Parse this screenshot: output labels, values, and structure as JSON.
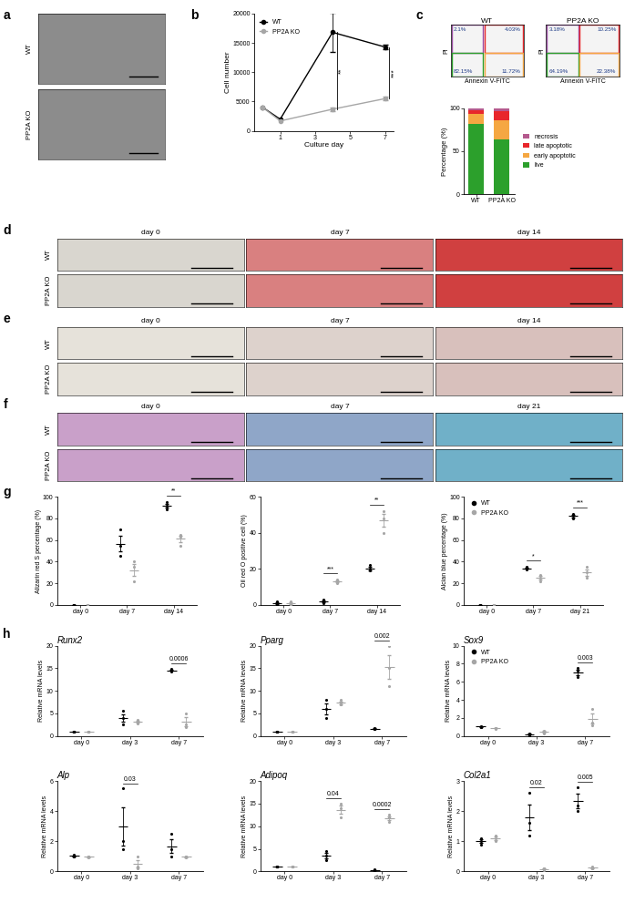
{
  "images": [
    {
      "panel": "a",
      "rows": [
        "WT",
        "PP2A KO"
      ]
    },
    {
      "panel": "d",
      "rows": [
        "WT",
        "PP2A KO"
      ],
      "columns": [
        "day 0",
        "day 7",
        "day 14"
      ]
    },
    {
      "panel": "e",
      "rows": [
        "WT",
        "PP2A KO"
      ],
      "columns": [
        "day 0",
        "day 7",
        "day 14"
      ]
    },
    {
      "panel": "f",
      "rows": [
        "WT",
        "PP2A KO"
      ],
      "columns": [
        "day 0",
        "day 7",
        "day 21"
      ]
    }
  ],
  "chart_data": [
    {
      "panel": "b",
      "type": "line",
      "x_label": "Culture day",
      "y_label": "Cell number",
      "x": [
        0,
        1,
        4,
        7
      ],
      "xlim": [
        -0.5,
        7.5
      ],
      "xticks": [
        1,
        3,
        5,
        7
      ],
      "ylim": [
        0,
        20000
      ],
      "yticks": [
        0,
        5000,
        10000,
        15000,
        20000
      ],
      "legend": "upper left",
      "series": [
        {
          "name": "WT",
          "color": "#000000",
          "marker": "o",
          "values": [
            4000,
            2000,
            16800,
            14300
          ],
          "errors": [
            null,
            null,
            3300,
            400
          ]
        },
        {
          "name": "PP2A KO",
          "color": "#a6a6a6",
          "marker": "o",
          "values": [
            4000,
            1700,
            3700,
            5500
          ],
          "errors": [
            null,
            null,
            300,
            300
          ]
        }
      ],
      "annotations": [
        {
          "x": 4,
          "text": "**"
        },
        {
          "x": 7,
          "text": "***"
        }
      ]
    },
    {
      "panel": "c",
      "type": "quadrant",
      "title": "WT",
      "x_label": "Annexin V-FITC",
      "y_label": "PI",
      "tick_labels": false,
      "values": [
        2.1,
        4.03,
        82.15,
        11.72
      ],
      "value_labels": [
        "2.1%",
        "4.03%",
        "82.15%",
        "11.72%"
      ],
      "colors": [
        "#9b4fa5",
        "#e8262b",
        "#2ca02c",
        "#f5a742"
      ],
      "data_labels": true
    },
    {
      "panel": "c",
      "type": "quadrant",
      "title": "PP2A KO",
      "x_label": "Annexin V-FITC",
      "y_label": "PI",
      "tick_labels": false,
      "values": [
        3.18,
        10.25,
        64.19,
        22.38
      ],
      "value_labels": [
        "3.18%",
        "10.25%",
        "64.19%",
        "22.38%"
      ],
      "colors": [
        "#9b4fa5",
        "#e8262b",
        "#2ca02c",
        "#f5a742"
      ],
      "data_labels": true
    },
    {
      "panel": "c",
      "type": "bar",
      "stacked": true,
      "y_label": "Percentage (%)",
      "categories": [
        "WT",
        "PP2A KO"
      ],
      "ylim": [
        0,
        100
      ],
      "yticks": [
        0,
        50,
        100
      ],
      "legend": "center left",
      "series": [
        {
          "name": "live",
          "color": "#2ca02c",
          "values": [
            82.15,
            64.19
          ]
        },
        {
          "name": "early apoptotic",
          "color": "#f5a742",
          "values": [
            11.72,
            22.38
          ]
        },
        {
          "name": "late apoptotic",
          "color": "#e8262b",
          "values": [
            4.03,
            10.25
          ]
        },
        {
          "name": "necrosis",
          "color": "#b55a8e",
          "values": [
            2.1,
            3.18
          ]
        }
      ]
    },
    {
      "panel": "g",
      "type": "dot",
      "y_label": "Alizarin red S percentage (%)",
      "categories": [
        "day 0",
        "day 7",
        "day 14"
      ],
      "ylim": [
        0,
        100
      ],
      "yticks": [
        0,
        20,
        40,
        60,
        80,
        100
      ],
      "series": [
        {
          "name": "WT",
          "color": "#000000",
          "values": [
            [
              0,
              0,
              0
            ],
            [
              70,
              55,
              45
            ],
            [
              92,
              95,
              88
            ]
          ],
          "means": [
            0,
            56.7,
            91.7
          ],
          "errors": [
            0,
            7.3,
            2.0
          ]
        },
        {
          "name": "PP2A KO",
          "color": "#a6a6a6",
          "values": [
            [
              0,
              0,
              0
            ],
            [
              35,
              40,
              22
            ],
            [
              63,
              65,
              55
            ]
          ],
          "means": [
            0,
            32.3,
            61
          ],
          "errors": [
            0,
            5.4,
            3.1
          ]
        }
      ],
      "annotations": [
        {
          "category": "day 14",
          "text": "**"
        }
      ]
    },
    {
      "panel": "g",
      "type": "dot",
      "y_label": "Oil red O positive cell (%)",
      "categories": [
        "day 0",
        "day 7",
        "day 14"
      ],
      "ylim": [
        0,
        60
      ],
      "yticks": [
        0,
        20,
        40,
        60
      ],
      "series": [
        {
          "name": "WT",
          "color": "#000000",
          "values": [
            [
              1,
              2,
              0
            ],
            [
              2,
              3,
              1
            ],
            [
              20,
              19,
              22
            ]
          ],
          "means": [
            1,
            2,
            20.3
          ],
          "errors": [
            0.6,
            0.6,
            0.9
          ]
        },
        {
          "name": "PP2A KO",
          "color": "#a6a6a6",
          "values": [
            [
              1,
              0,
              2
            ],
            [
              13,
              12,
              14
            ],
            [
              48,
              40,
              52
            ]
          ],
          "means": [
            1,
            13,
            46.7
          ],
          "errors": [
            0.6,
            0.6,
            3.5
          ]
        }
      ],
      "annotations": [
        {
          "category": "day 7",
          "text": "***"
        },
        {
          "category": "day 14",
          "text": "**"
        }
      ]
    },
    {
      "panel": "g",
      "type": "dot",
      "y_label": "Alcian blue percentage (%)",
      "categories": [
        "day 0",
        "day 7",
        "day 21"
      ],
      "ylim": [
        0,
        100
      ],
      "yticks": [
        0,
        20,
        40,
        60,
        80,
        100
      ],
      "legend": "upper left",
      "series": [
        {
          "name": "WT",
          "color": "#000000",
          "values": [
            [
              0,
              0,
              0
            ],
            [
              33,
              35,
              34
            ],
            [
              82,
              80,
              84
            ]
          ],
          "means": [
            0,
            34,
            82
          ],
          "errors": [
            0,
            0.6,
            1.2
          ]
        },
        {
          "name": "PP2A KO",
          "color": "#a6a6a6",
          "values": [
            [
              0,
              0,
              0
            ],
            [
              25,
              22,
              28
            ],
            [
              30,
              25,
              35
            ]
          ],
          "means": [
            0,
            25,
            30
          ],
          "errors": [
            0,
            1.7,
            2.9
          ]
        }
      ],
      "annotations": [
        {
          "category": "day 7",
          "text": "*"
        },
        {
          "category": "day 21",
          "text": "***"
        }
      ]
    },
    {
      "panel": "h",
      "type": "dot",
      "title": "Runx2",
      "y_label": "Relative mRNA levels",
      "categories": [
        "day 0",
        "day 3",
        "day 7"
      ],
      "ylim": [
        0,
        20
      ],
      "yticks": [
        0,
        5,
        10,
        15,
        20
      ],
      "series": [
        {
          "name": "WT",
          "color": "#000000",
          "values": [
            [
              1,
              1,
              1
            ],
            [
              5.5,
              2.5,
              4
            ],
            [
              14.5,
              14.8,
              14.3
            ]
          ],
          "means": [
            1,
            4,
            14.53
          ],
          "errors": [
            0,
            0.87,
            0.15
          ]
        },
        {
          "name": "PP2A KO",
          "color": "#a6a6a6",
          "values": [
            [
              1,
              1,
              1
            ],
            [
              3.5,
              3,
              2.8
            ],
            [
              5,
              2,
              2.5
            ]
          ],
          "means": [
            1,
            3.1,
            3.17
          ],
          "errors": [
            0,
            0.21,
            0.93
          ]
        }
      ],
      "annotations": [
        {
          "category": "day 7",
          "text": "0.0006"
        }
      ]
    },
    {
      "panel": "h",
      "type": "dot",
      "title": "Pparg",
      "y_label": "Relative mRNA levels",
      "categories": [
        "day 0",
        "day 3",
        "day 7"
      ],
      "ylim": [
        0,
        20
      ],
      "yticks": [
        0,
        5,
        10,
        15,
        20
      ],
      "series": [
        {
          "name": "WT",
          "color": "#000000",
          "values": [
            [
              1,
              1,
              1
            ],
            [
              4,
              6,
              8
            ],
            [
              1.5,
              1.6,
              1.7
            ]
          ],
          "means": [
            1,
            6,
            1.6
          ],
          "errors": [
            0,
            1.15,
            0.06
          ]
        },
        {
          "name": "PP2A KO",
          "color": "#a6a6a6",
          "values": [
            [
              1,
              1,
              1
            ],
            [
              7,
              8,
              7
            ],
            [
              20,
              15,
              11
            ]
          ],
          "means": [
            1,
            7.33,
            15.33
          ],
          "errors": [
            0,
            0.33,
            2.6
          ]
        }
      ],
      "annotations": [
        {
          "category": "day 7",
          "text": "0.002"
        }
      ]
    },
    {
      "panel": "h",
      "type": "dot",
      "title": "Sox9",
      "y_label": "Relative mRNA levels",
      "categories": [
        "day 0",
        "day 3",
        "day 7"
      ],
      "ylim": [
        0,
        10
      ],
      "yticks": [
        0,
        2,
        4,
        6,
        8,
        10
      ],
      "legend": "upper left",
      "series": [
        {
          "name": "WT",
          "color": "#000000",
          "values": [
            [
              1.1,
              1,
              1
            ],
            [
              0.2,
              0.1,
              0.3
            ],
            [
              7.5,
              6.5,
              7.2
            ]
          ],
          "means": [
            1.03,
            0.2,
            7.07
          ],
          "errors": [
            0.03,
            0.06,
            0.3
          ]
        },
        {
          "name": "PP2A KO",
          "color": "#a6a6a6",
          "values": [
            [
              0.9,
              0.8,
              0.9
            ],
            [
              0.5,
              0.3,
              0.6
            ],
            [
              3,
              1.5,
              1.2
            ]
          ],
          "means": [
            0.87,
            0.47,
            1.9
          ],
          "errors": [
            0.03,
            0.09,
            0.56
          ]
        }
      ],
      "annotations": [
        {
          "category": "day 7",
          "text": "0.003"
        }
      ]
    },
    {
      "panel": "h",
      "type": "dot",
      "title": "Alp",
      "y_label": "Relative mRNA levels",
      "categories": [
        "day 0",
        "day 3",
        "day 7"
      ],
      "ylim": [
        0,
        6
      ],
      "yticks": [
        0,
        2,
        4,
        6
      ],
      "series": [
        {
          "name": "WT",
          "color": "#000000",
          "values": [
            [
              1.1,
              1,
              1
            ],
            [
              5.5,
              2,
              1.5
            ],
            [
              2.5,
              1,
              1.5
            ]
          ],
          "means": [
            1.03,
            3,
            1.67
          ],
          "errors": [
            0.03,
            1.26,
            0.44
          ]
        },
        {
          "name": "PP2A KO",
          "color": "#a6a6a6",
          "values": [
            [
              0.9,
              1,
              1
            ],
            [
              1,
              0.2,
              0.3
            ],
            [
              1,
              0.9,
              1
            ]
          ],
          "means": [
            0.97,
            0.5,
            0.97
          ],
          "errors": [
            0.03,
            0.25,
            0.03
          ]
        }
      ],
      "annotations": [
        {
          "category": "day 3",
          "text": "0.03"
        }
      ]
    },
    {
      "panel": "h",
      "type": "dot",
      "title": "Adipoq",
      "y_label": "Relative mRNA levels",
      "categories": [
        "day 0",
        "day 3",
        "day 7"
      ],
      "ylim": [
        0,
        20
      ],
      "yticks": [
        0,
        5,
        10,
        15,
        20
      ],
      "series": [
        {
          "name": "WT",
          "color": "#000000",
          "values": [
            [
              1,
              1,
              1
            ],
            [
              2.5,
              3.5,
              4.5
            ],
            [
              0.3,
              0.2,
              0.4
            ]
          ],
          "means": [
            1,
            3.5,
            0.3
          ],
          "errors": [
            0,
            0.58,
            0.06
          ]
        },
        {
          "name": "PP2A KO",
          "color": "#a6a6a6",
          "values": [
            [
              1,
              1,
              1
            ],
            [
              15,
              14,
              12
            ],
            [
              12.5,
              11,
              12
            ]
          ],
          "means": [
            1,
            13.67,
            11.83
          ],
          "errors": [
            0,
            0.88,
            0.44
          ]
        }
      ],
      "annotations": [
        {
          "category": "day 3",
          "text": "0.04"
        },
        {
          "category": "day 7",
          "text": "0.0002"
        }
      ]
    },
    {
      "panel": "h",
      "type": "dot",
      "title": "Col2a1",
      "y_label": "Relative mRNA levels",
      "categories": [
        "day 0",
        "day 3",
        "day 7"
      ],
      "ylim": [
        0,
        3
      ],
      "yticks": [
        0,
        1,
        2,
        3
      ],
      "series": [
        {
          "name": "WT",
          "color": "#000000",
          "values": [
            [
              1,
              0.9,
              1.1
            ],
            [
              2.6,
              1.6,
              1.2
            ],
            [
              2.8,
              2.2,
              2
            ]
          ],
          "means": [
            1,
            1.8,
            2.33
          ],
          "errors": [
            0.06,
            0.42,
            0.24
          ]
        },
        {
          "name": "PP2A KO",
          "color": "#a6a6a6",
          "values": [
            [
              1.1,
              1,
              1.2
            ],
            [
              0.1,
              0.1,
              0.05
            ],
            [
              0.1,
              0.15,
              0.1
            ]
          ],
          "means": [
            1.1,
            0.08,
            0.12
          ],
          "errors": [
            0.06,
            0.02,
            0.02
          ]
        }
      ],
      "annotations": [
        {
          "category": "day 3",
          "text": "0.02"
        },
        {
          "category": "day 7",
          "text": "0.005"
        }
      ]
    }
  ]
}
